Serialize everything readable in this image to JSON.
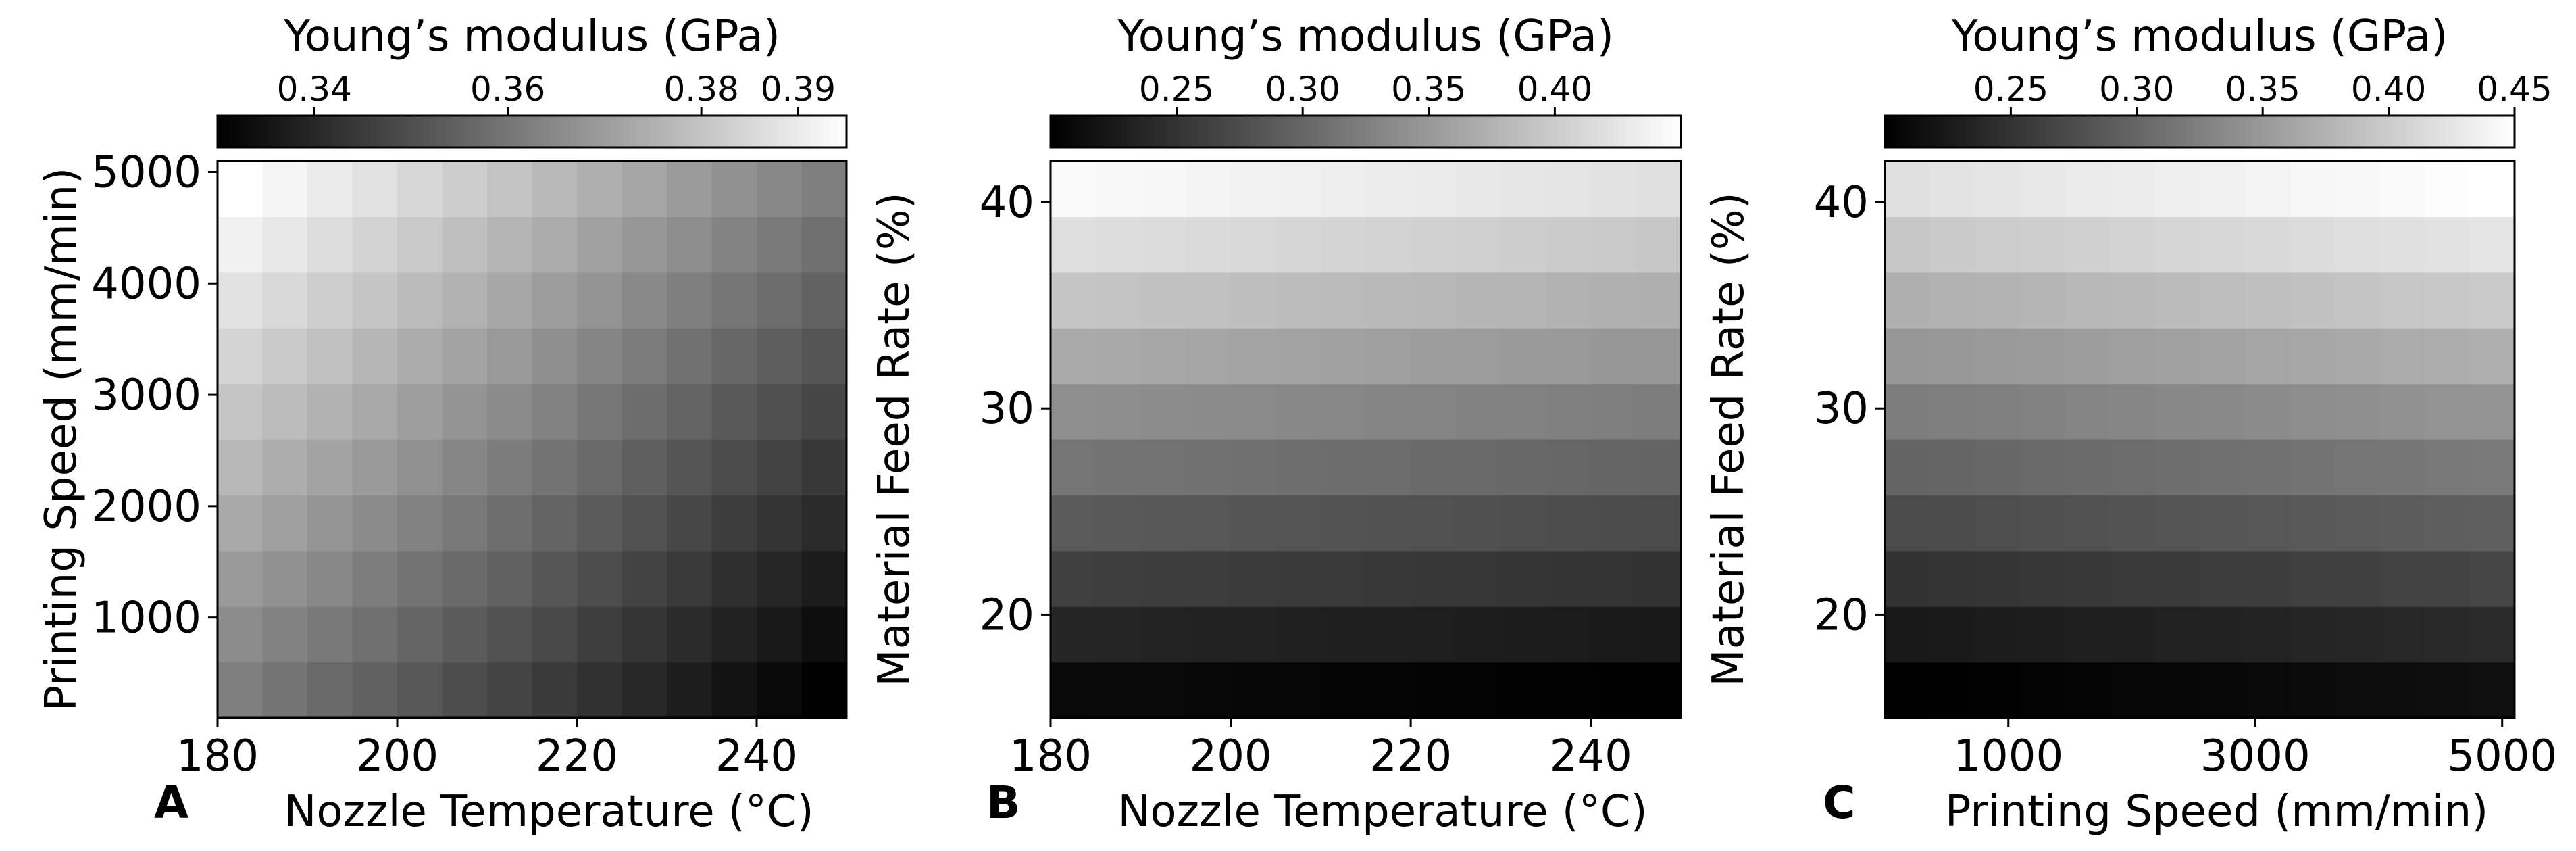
{
  "chart_data": [
    {
      "type": "heatmap",
      "panel_label": "A",
      "colorbar_title": "Young’s modulus (GPa)",
      "colormap": "grayscale (black = low, white = high)",
      "xlabel": "Nozzle Temperature (°C)",
      "ylabel": "Printing Speed (mm/min)",
      "xlim": [
        180,
        250
      ],
      "ylim": [
        100,
        5100
      ],
      "x_ticks": [
        "180",
        "200",
        "220",
        "240"
      ],
      "y_ticks": [
        "1000",
        "2000",
        "3000",
        "4000",
        "5000"
      ],
      "colorbar_ticks": [
        "0.34",
        "0.36",
        "0.38",
        "0.39"
      ],
      "colorbar_range": [
        0.33,
        0.395
      ],
      "grid_x": [
        182.5,
        187.5,
        192.5,
        197.5,
        202.5,
        207.5,
        212.5,
        217.5,
        222.5,
        227.5,
        232.5,
        237.5,
        242.5,
        247.5
      ],
      "grid_y": [
        350,
        850,
        1350,
        1850,
        2350,
        2850,
        3350,
        3850,
        4350,
        4850
      ],
      "value_corners": {
        "low_x_low_y": 0.362,
        "low_x_high_y": 0.395,
        "high_x_low_y": 0.33,
        "high_x_high_y": 0.362
      }
    },
    {
      "type": "heatmap",
      "panel_label": "B",
      "colorbar_title": "Young’s modulus (GPa)",
      "colormap": "grayscale (black = low, white = high)",
      "xlabel": "Nozzle Temperature (°C)",
      "ylabel": "Material Feed Rate (%)",
      "xlim": [
        180,
        250
      ],
      "ylim": [
        15,
        42
      ],
      "x_ticks": [
        "180",
        "200",
        "220",
        "240"
      ],
      "y_ticks": [
        "20",
        "30",
        "40"
      ],
      "colorbar_ticks": [
        "0.25",
        "0.30",
        "0.35",
        "0.40"
      ],
      "colorbar_range": [
        0.2,
        0.45
      ],
      "grid_x": [
        182.5,
        187.5,
        192.5,
        197.5,
        202.5,
        207.5,
        212.5,
        217.5,
        222.5,
        227.5,
        232.5,
        237.5,
        242.5,
        247.5
      ],
      "grid_y": [
        16.35,
        19.05,
        21.75,
        24.45,
        27.15,
        29.85,
        32.55,
        35.25,
        37.95,
        40.65
      ],
      "value_corners": {
        "low_x_low_y": 0.21,
        "low_x_high_y": 0.445,
        "high_x_low_y": 0.2,
        "high_x_high_y": 0.42
      }
    },
    {
      "type": "heatmap",
      "panel_label": "C",
      "colorbar_title": "Young’s modulus (GPa)",
      "colormap": "grayscale (black = low, white = high)",
      "xlabel": "Printing Speed (mm/min)",
      "ylabel": "Material Feed Rate (%)",
      "xlim": [
        0,
        5100
      ],
      "ylim": [
        15,
        42
      ],
      "x_ticks": [
        "1000",
        "3000",
        "5000"
      ],
      "y_ticks": [
        "20",
        "30",
        "40"
      ],
      "colorbar_ticks": [
        "0.25",
        "0.30",
        "0.35",
        "0.40",
        "0.45"
      ],
      "colorbar_range": [
        0.2,
        0.45
      ],
      "grid_x": [
        182,
        546,
        911,
        1275,
        1639,
        2004,
        2368,
        2732,
        3096,
        3461,
        3825,
        4189,
        4554,
        4918
      ],
      "grid_y": [
        16.35,
        19.05,
        21.75,
        24.45,
        27.15,
        29.85,
        32.55,
        35.25,
        37.95,
        40.65
      ],
      "value_corners": {
        "low_x_low_y": 0.2,
        "low_x_high_y": 0.42,
        "high_x_low_y": 0.215,
        "high_x_high_y": 0.45
      }
    }
  ]
}
